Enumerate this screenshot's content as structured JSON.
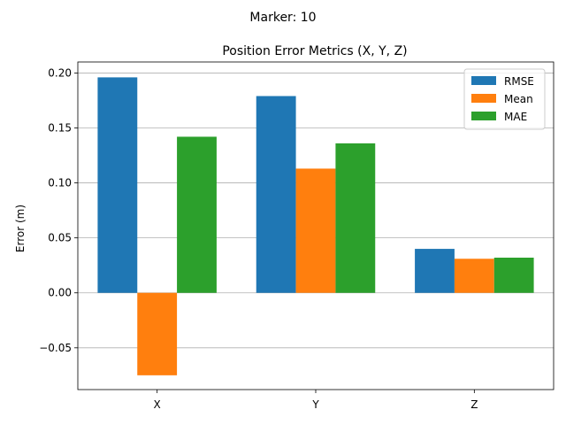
{
  "figure": {
    "suptitle": "Marker: 10"
  },
  "chart_data": {
    "type": "bar",
    "title": "Position Error Metrics (X, Y, Z)",
    "xlabel": "",
    "ylabel": "Error (m)",
    "categories": [
      "X",
      "Y",
      "Z"
    ],
    "series": [
      {
        "name": "RMSE",
        "color": "#1f77b4",
        "values": [
          0.196,
          0.179,
          0.04
        ]
      },
      {
        "name": "Mean",
        "color": "#ff7f0e",
        "values": [
          -0.075,
          0.113,
          0.031
        ]
      },
      {
        "name": "MAE",
        "color": "#2ca02c",
        "values": [
          0.142,
          0.136,
          0.032
        ]
      }
    ],
    "ylim": [
      -0.088,
      0.21
    ],
    "yticks": [
      -0.05,
      0.0,
      0.05,
      0.1,
      0.15,
      0.2
    ],
    "ytick_labels": [
      "−0.05",
      "0.00",
      "0.05",
      "0.10",
      "0.15",
      "0.20"
    ],
    "grid": "y",
    "legend_position": "top-right"
  }
}
